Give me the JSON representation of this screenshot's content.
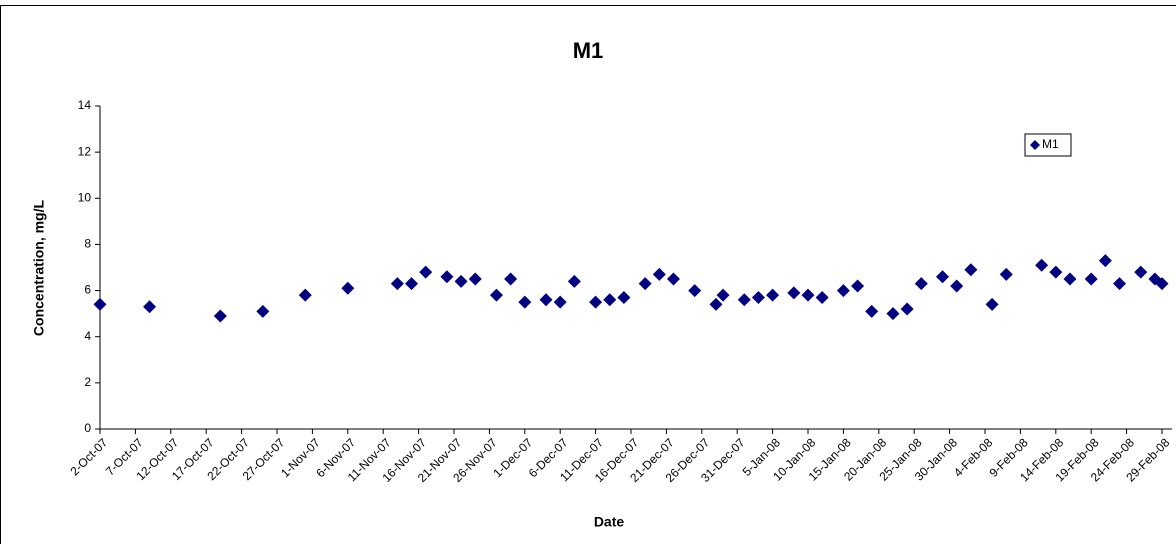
{
  "chart_data": {
    "type": "scatter",
    "title": "M1",
    "x_label": "Date",
    "y_label": "Concentration, mg/L",
    "series": [
      {
        "name": "M1",
        "color": "#000080",
        "x": [
          "2007-10-02",
          "2007-10-09",
          "2007-10-19",
          "2007-10-25",
          "2007-10-31",
          "2007-11-06",
          "2007-11-13",
          "2007-11-15",
          "2007-11-17",
          "2007-11-20",
          "2007-11-22",
          "2007-11-24",
          "2007-11-27",
          "2007-11-29",
          "2007-12-01",
          "2007-12-04",
          "2007-12-06",
          "2007-12-08",
          "2007-12-11",
          "2007-12-13",
          "2007-12-15",
          "2007-12-18",
          "2007-12-20",
          "2007-12-22",
          "2007-12-25",
          "2007-12-28",
          "2007-12-29",
          "2008-01-01",
          "2008-01-03",
          "2008-01-05",
          "2008-01-08",
          "2008-01-10",
          "2008-01-12",
          "2008-01-15",
          "2008-01-17",
          "2008-01-19",
          "2008-01-22",
          "2008-01-24",
          "2008-01-26",
          "2008-01-29",
          "2008-01-31",
          "2008-02-02",
          "2008-02-05",
          "2008-02-07",
          "2008-02-12",
          "2008-02-14",
          "2008-02-16",
          "2008-02-19",
          "2008-02-21",
          "2008-02-23",
          "2008-02-26",
          "2008-02-28",
          "2008-02-29"
        ],
        "values": [
          5.4,
          5.3,
          4.9,
          5.1,
          5.8,
          6.1,
          6.3,
          6.3,
          6.8,
          6.6,
          6.4,
          6.5,
          5.8,
          6.5,
          5.5,
          5.6,
          5.5,
          6.4,
          5.5,
          5.6,
          5.7,
          6.3,
          6.7,
          6.5,
          6.0,
          5.4,
          5.8,
          5.6,
          5.7,
          5.8,
          5.9,
          5.8,
          5.7,
          6.0,
          6.2,
          5.1,
          5.0,
          5.2,
          6.3,
          6.6,
          6.2,
          6.9,
          5.4,
          6.7,
          7.1,
          6.8,
          6.5,
          6.5,
          7.3,
          6.3,
          6.8,
          6.5,
          6.3
        ]
      }
    ],
    "xlim": [
      "2007-10-02",
      "2008-02-29"
    ],
    "xticks": [
      {
        "value": "2007-10-02",
        "label": "2-Oct-07"
      },
      {
        "value": "2007-10-07",
        "label": "7-Oct-07"
      },
      {
        "value": "2007-10-12",
        "label": "12-Oct-07"
      },
      {
        "value": "2007-10-17",
        "label": "17-Oct-07"
      },
      {
        "value": "2007-10-22",
        "label": "22-Oct-07"
      },
      {
        "value": "2007-10-27",
        "label": "27-Oct-07"
      },
      {
        "value": "2007-11-01",
        "label": "1-Nov-07"
      },
      {
        "value": "2007-11-06",
        "label": "6-Nov-07"
      },
      {
        "value": "2007-11-11",
        "label": "11-Nov-07"
      },
      {
        "value": "2007-11-16",
        "label": "16-Nov-07"
      },
      {
        "value": "2007-11-21",
        "label": "21-Nov-07"
      },
      {
        "value": "2007-11-26",
        "label": "26-Nov-07"
      },
      {
        "value": "2007-12-01",
        "label": "1-Dec-07"
      },
      {
        "value": "2007-12-06",
        "label": "6-Dec-07"
      },
      {
        "value": "2007-12-11",
        "label": "11-Dec-07"
      },
      {
        "value": "2007-12-16",
        "label": "16-Dec-07"
      },
      {
        "value": "2007-12-21",
        "label": "21-Dec-07"
      },
      {
        "value": "2007-12-26",
        "label": "26-Dec-07"
      },
      {
        "value": "2007-12-31",
        "label": "31-Dec-07"
      },
      {
        "value": "2008-01-05",
        "label": "5-Jan-08"
      },
      {
        "value": "2008-01-10",
        "label": "10-Jan-08"
      },
      {
        "value": "2008-01-15",
        "label": "15-Jan-08"
      },
      {
        "value": "2008-01-20",
        "label": "20-Jan-08"
      },
      {
        "value": "2008-01-25",
        "label": "25-Jan-08"
      },
      {
        "value": "2008-01-30",
        "label": "30-Jan-08"
      },
      {
        "value": "2008-02-04",
        "label": "4-Feb-08"
      },
      {
        "value": "2008-02-09",
        "label": "9-Feb-08"
      },
      {
        "value": "2008-02-14",
        "label": "14-Feb-08"
      },
      {
        "value": "2008-02-19",
        "label": "19-Feb-08"
      },
      {
        "value": "2008-02-24",
        "label": "24-Feb-08"
      },
      {
        "value": "2008-02-29",
        "label": "29-Feb-08"
      }
    ],
    "ylim": [
      0,
      14
    ],
    "yticks": [
      0,
      2,
      4,
      6,
      8,
      10,
      12,
      14
    ],
    "grid": false,
    "legend": "top-right"
  }
}
